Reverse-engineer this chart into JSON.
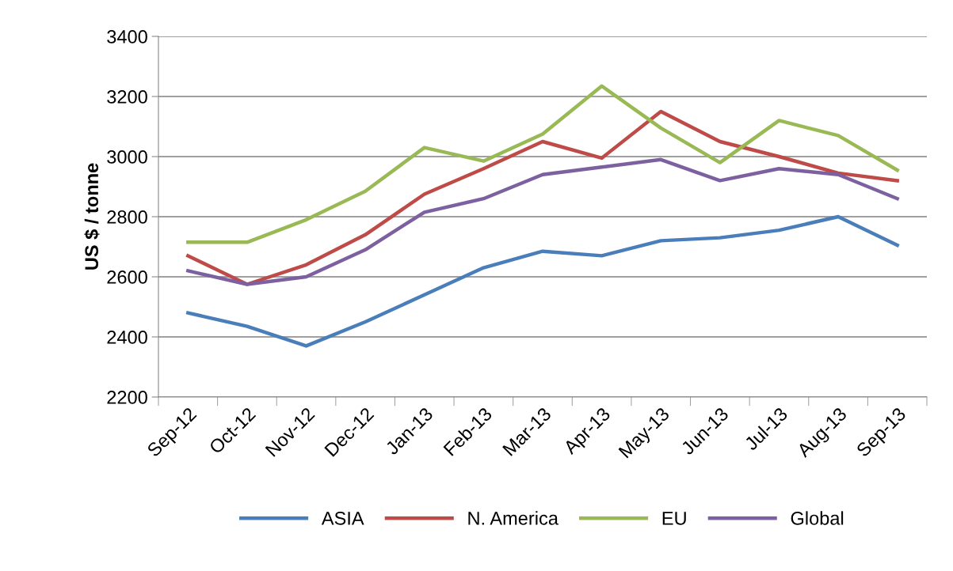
{
  "chart_data": {
    "type": "line",
    "ylabel": "US $ / tonne",
    "categories": [
      "Sep-12",
      "Oct-12",
      "Nov-12",
      "Dec-12",
      "Jan-13",
      "Feb-13",
      "Mar-13",
      "Apr-13",
      "May-13",
      "Jun-13",
      "Jul-13",
      "Aug-13",
      "Sep-13"
    ],
    "series": [
      {
        "name": "ASIA",
        "color": "#4a7ebb",
        "values": [
          2480,
          2435,
          2370,
          2450,
          2540,
          2630,
          2685,
          2670,
          2720,
          2730,
          2755,
          2800,
          2705
        ]
      },
      {
        "name": "N. America",
        "color": "#be4b48",
        "values": [
          2670,
          2575,
          2640,
          2740,
          2875,
          2960,
          3050,
          2995,
          3150,
          3050,
          3000,
          2945,
          2920
        ]
      },
      {
        "name": "EU",
        "color": "#98b954",
        "values": [
          2715,
          2715,
          2790,
          2885,
          3030,
          2985,
          3075,
          3235,
          3095,
          2980,
          3120,
          3070,
          2955
        ]
      },
      {
        "name": "Global",
        "color": "#7d60a0",
        "values": [
          2620,
          2575,
          2600,
          2690,
          2815,
          2860,
          2940,
          2965,
          2990,
          2920,
          2960,
          2940,
          2860
        ]
      }
    ],
    "ylim": [
      2200,
      3400
    ],
    "yticks": [
      2200,
      2400,
      2600,
      2800,
      3000,
      3200,
      3400
    ],
    "grid": "y",
    "legend": "bottom",
    "marker": "none",
    "line_style": "solid"
  }
}
